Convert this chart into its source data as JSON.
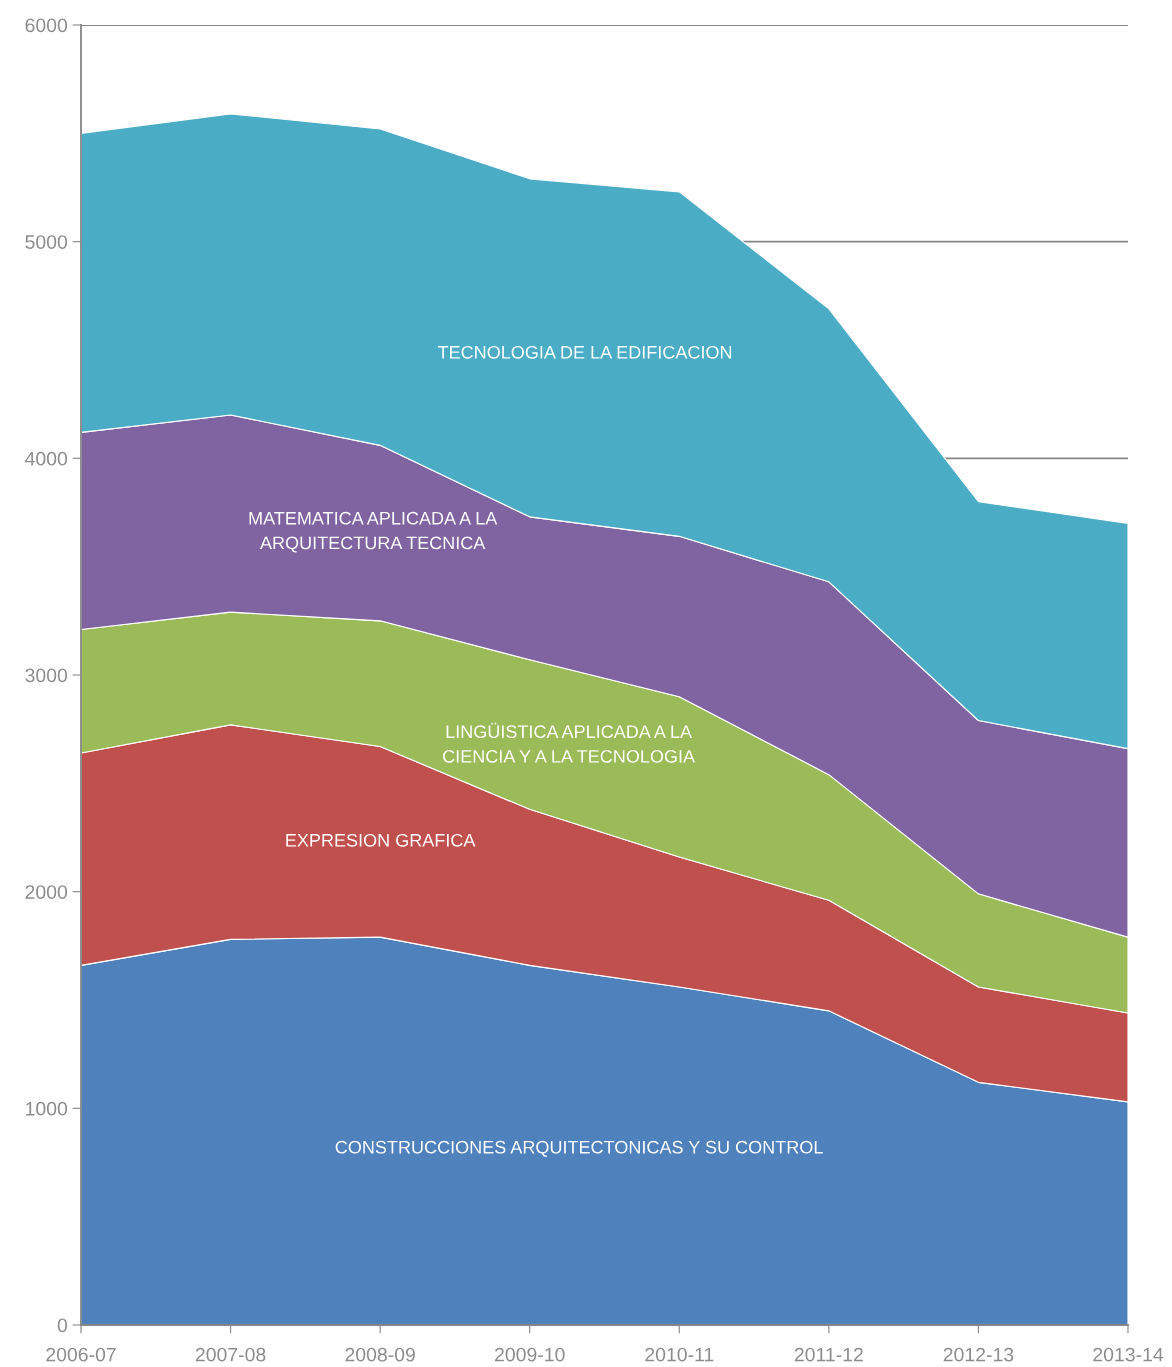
{
  "chart_data": {
    "type": "area",
    "stacked": true,
    "categories": [
      "2006-07",
      "2007-08",
      "2008-09",
      "2009-10",
      "2010-11",
      "2011-12",
      "2012-13",
      "2013-14"
    ],
    "ylim": [
      0,
      6000
    ],
    "yticks": [
      0,
      1000,
      2000,
      3000,
      4000,
      5000,
      6000
    ],
    "grid": "y",
    "legend": false,
    "series": [
      {
        "name": "CONSTRUCCIONES ARQUITECTONICAS Y SU CONTROL",
        "color": "#4f81bd",
        "values": [
          1660,
          1780,
          1790,
          1660,
          1560,
          1450,
          1120,
          1030
        ]
      },
      {
        "name": "EXPRESION GRAFICA",
        "color": "#c0504d",
        "values": [
          980,
          990,
          880,
          720,
          600,
          510,
          440,
          410
        ]
      },
      {
        "name": "LINGÜISTICA APLICADA A LA\nCIENCIA Y A LA TECNOLOGIA",
        "color": "#9bbb59",
        "values": [
          570,
          520,
          580,
          690,
          740,
          580,
          430,
          350
        ]
      },
      {
        "name": "MATEMATICA APLICADA A LA\nARQUITECTURA TECNICA",
        "color": "#8064a2",
        "values": [
          910,
          910,
          810,
          660,
          740,
          890,
          800,
          870
        ]
      },
      {
        "name": "TECNOLOGIA DE LA EDIFICACION",
        "color": "#4bacc6",
        "values": [
          1380,
          1390,
          1460,
          1560,
          1590,
          1260,
          1010,
          1040
        ]
      }
    ]
  }
}
